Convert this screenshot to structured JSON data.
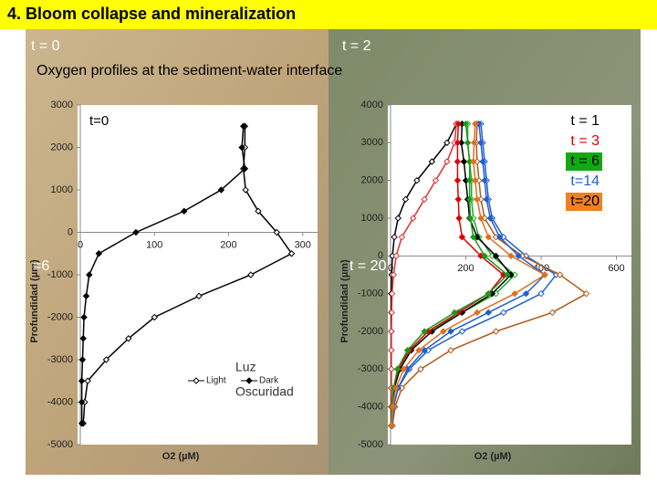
{
  "title": "4. Bloom collapse and mineralization",
  "labels": [
    "t = 0",
    "t = 2",
    "Oxygen profiles at the sediment-water interface"
  ],
  "chart_data": [
    {
      "type": "line",
      "y_label": "Profundidad (µm)",
      "x_label": "O2 (µM)",
      "xlim": [
        0,
        320
      ],
      "ylim": [
        -5000,
        3000
      ],
      "xticks": [
        0,
        100,
        200,
        300
      ],
      "yticks": [
        -5000,
        -4000,
        -3000,
        -2000,
        -1000,
        0,
        1000,
        2000,
        3000
      ],
      "y": [
        2500,
        2000,
        1500,
        1000,
        500,
        0,
        -500,
        -1000,
        -1500,
        -2000,
        -2500,
        -3000,
        -3500,
        -4000,
        -4500
      ],
      "series": [
        {
          "name": "Light",
          "color": "#000000",
          "marker": "open",
          "values": [
            222,
            222,
            220,
            223,
            240,
            265,
            285,
            230,
            160,
            100,
            65,
            35,
            10,
            6,
            4
          ]
        },
        {
          "name": "Dark",
          "color": "#000000",
          "marker": "filled",
          "values": [
            220,
            218,
            222,
            190,
            140,
            75,
            25,
            12,
            8,
            5,
            4,
            3,
            2,
            2,
            2
          ]
        }
      ],
      "legend": true,
      "annotations": [
        "t=0",
        "=6",
        "Luz",
        "Oscuridad"
      ]
    },
    {
      "type": "line",
      "y_label": "Profundidad (µm)",
      "x_label": "O2 (µM)",
      "xlim": [
        0,
        640
      ],
      "ylim": [
        -5000,
        4000
      ],
      "xticks": [
        0,
        200,
        400,
        600
      ],
      "yticks": [
        -5000,
        -4000,
        -3000,
        -2000,
        -1000,
        0,
        1000,
        2000,
        3000,
        4000
      ],
      "y": [
        3500,
        3000,
        2500,
        2000,
        1500,
        1000,
        500,
        0,
        -500,
        -1000,
        -1500,
        -2000,
        -2500,
        -3000,
        -3500,
        -4000,
        -4500
      ],
      "series": [
        {
          "color": "#000000",
          "marker": "open",
          "values": [
            175,
            150,
            110,
            70,
            40,
            20,
            10,
            5,
            3,
            2,
            2,
            2,
            2,
            2,
            2,
            2,
            2
          ]
        },
        {
          "color": "#e03030",
          "marker": "open",
          "values": [
            175,
            170,
            150,
            120,
            90,
            60,
            30,
            15,
            8,
            4,
            3,
            2,
            2,
            2,
            2,
            2,
            2
          ]
        },
        {
          "color": "#22aa22",
          "marker": "open",
          "values": [
            205,
            205,
            210,
            215,
            215,
            220,
            235,
            270,
            330,
            280,
            190,
            100,
            50,
            20,
            8,
            4,
            2
          ]
        },
        {
          "color": "#1f5fd0",
          "marker": "open",
          "values": [
            240,
            245,
            250,
            255,
            260,
            270,
            300,
            360,
            440,
            400,
            300,
            190,
            100,
            50,
            20,
            8,
            4
          ]
        },
        {
          "color": "#b05a18",
          "marker": "open",
          "values": [
            230,
            228,
            230,
            235,
            240,
            250,
            280,
            350,
            450,
            520,
            430,
            280,
            160,
            80,
            30,
            12,
            5
          ]
        },
        {
          "name": "t = 1",
          "color": "#000000",
          "marker": "filled",
          "values": [
            190,
            188,
            195,
            200,
            205,
            210,
            230,
            280,
            320,
            270,
            190,
            110,
            55,
            25,
            10,
            5,
            3
          ]
        },
        {
          "name": "t = 3",
          "color": "#e00000",
          "marker": "filled",
          "values": [
            180,
            178,
            178,
            178,
            180,
            182,
            190,
            240,
            300,
            260,
            180,
            100,
            50,
            20,
            8,
            4,
            2
          ]
        },
        {
          "name": "t = 6",
          "color": "#1a9a1a",
          "label_background": "#11aa11",
          "label_color": "#000000",
          "marker": "filled",
          "values": [
            200,
            205,
            210,
            210,
            210,
            212,
            220,
            250,
            310,
            260,
            170,
            90,
            45,
            18,
            8,
            4,
            2
          ]
        },
        {
          "name": "t=14",
          "color": "#1f5fd0",
          "marker": "filled",
          "values": [
            235,
            240,
            245,
            250,
            255,
            265,
            290,
            340,
            410,
            360,
            260,
            160,
            90,
            45,
            20,
            8,
            4
          ]
        },
        {
          "name": "t=20",
          "color": "#e07020",
          "label_background": "#f08020",
          "label_color": "#000000",
          "marker": "filled",
          "values": [
            225,
            222,
            220,
            225,
            230,
            240,
            260,
            320,
            410,
            330,
            230,
            140,
            75,
            35,
            14,
            6,
            3
          ]
        }
      ],
      "legend": true,
      "annotations": [
        "t = 20"
      ]
    }
  ]
}
